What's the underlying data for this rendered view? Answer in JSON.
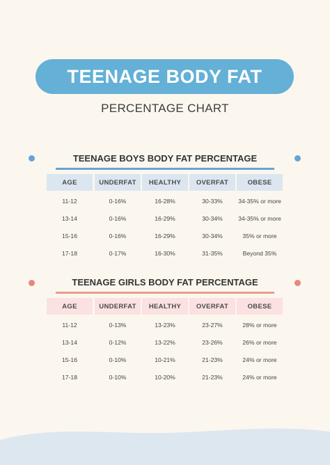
{
  "header": {
    "title": "TEENAGE BODY FAT",
    "subtitle": "PERCENTAGE CHART"
  },
  "colors": {
    "background": "#fbf7ef",
    "title_pill": "#64b0d6",
    "boys_header": "#dbe6f0",
    "boys_rule": "#64a4d6",
    "boys_dot": "#64a4d6",
    "girls_header": "#fbe1e1",
    "girls_rule": "#e99b8e",
    "girls_dot": "#e6867d",
    "wave": "#dde7ef"
  },
  "boys": {
    "title": "TEENAGE BOYS BODY FAT PERCENTAGE",
    "columns": [
      "AGE",
      "UNDERFAT",
      "HEALTHY",
      "OVERFAT",
      "OBESE"
    ],
    "rows": [
      [
        "11-12",
        "0-16%",
        "16-28%",
        "30-33%",
        "34-35% or more"
      ],
      [
        "13-14",
        "0-16%",
        "16-29%",
        "30-34%",
        "34-35% or more"
      ],
      [
        "15-16",
        "0-16%",
        "16-29%",
        "30-34%",
        "35% or more"
      ],
      [
        "17-18",
        "0-17%",
        "16-30%",
        "31-35%",
        "Beyond 35%"
      ]
    ]
  },
  "girls": {
    "title": "TEENAGE GIRLS BODY FAT PERCENTAGE",
    "columns": [
      "AGE",
      "UNDERFAT",
      "HEALTHY",
      "OVERFAT",
      "OBESE"
    ],
    "rows": [
      [
        "11-12",
        "0-13%",
        "13-23%",
        "23-27%",
        "28% or more"
      ],
      [
        "13-14",
        "0-12%",
        "13-22%",
        "23-26%",
        "26% or more"
      ],
      [
        "15-16",
        "0-10%",
        "10-21%",
        "21-23%",
        "24% or more"
      ],
      [
        "17-18",
        "0-10%",
        "10-20%",
        "21-23%",
        "24% or more"
      ]
    ]
  }
}
